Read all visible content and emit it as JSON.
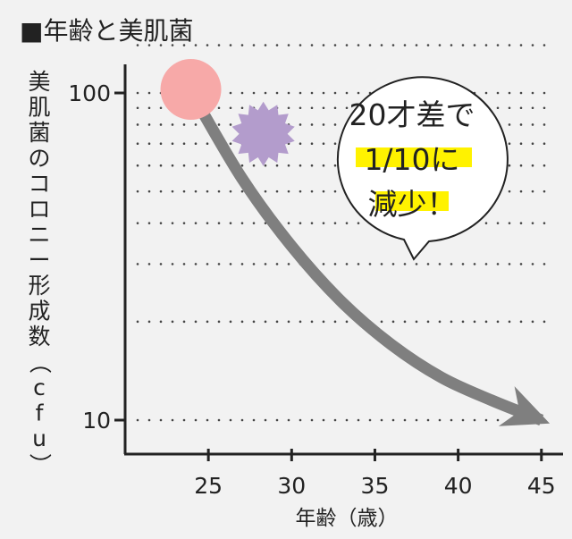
{
  "chart_data": {
    "type": "line",
    "title": "■年齢と美肌菌",
    "xlabel": "年齢（歳）",
    "ylabel": "美肌菌のコロニー形成数（cfu）",
    "x_ticks": [
      25,
      30,
      35,
      40,
      45
    ],
    "y_ticks": [
      100,
      10
    ],
    "y_scale": "log",
    "xlim": [
      20,
      46
    ],
    "ylim": [
      8,
      140
    ],
    "series": [
      {
        "x": [
          24,
          27,
          30,
          33,
          36,
          39,
          42,
          45
        ],
        "y": [
          100,
          55,
          34,
          23,
          17,
          13.5,
          11.5,
          10
        ],
        "color": "#7f7f7f"
      }
    ],
    "markers": [
      {
        "x": 24,
        "y": 100,
        "color": "#f7a9a8",
        "shape": "circle"
      },
      {
        "x": 28.3,
        "y": 75,
        "color": "#b39ccc",
        "shape": "starburst"
      }
    ],
    "annotation": {
      "line1": "20才差で",
      "line2": "1/10に",
      "line3": "減少！",
      "highlight_color": "#fff200"
    },
    "grid": "dotted-horizontal",
    "colors": {
      "axis": "#222222",
      "grid": "#444444",
      "background": "#f2f2f2"
    }
  }
}
